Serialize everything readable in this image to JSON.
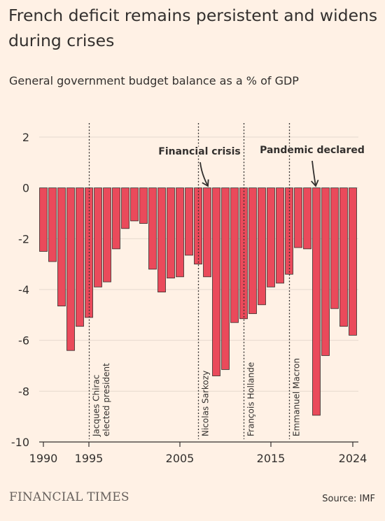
{
  "header": {
    "title": "French deficit remains persistent and widens during crises",
    "subtitle": "General government budget balance as a % of GDP"
  },
  "footer": {
    "brand": "FINANCIAL TIMES",
    "source": "Source: IMF"
  },
  "colors": {
    "background": "#fff1e5",
    "bar": "#ea4a5b",
    "bar_outline": "#33302e",
    "grid": "#e6d9ce",
    "text": "#33302e"
  },
  "chart_data": {
    "type": "bar",
    "x": [
      1990,
      1991,
      1992,
      1993,
      1994,
      1995,
      1996,
      1997,
      1998,
      1999,
      2000,
      2001,
      2002,
      2003,
      2004,
      2005,
      2006,
      2007,
      2008,
      2009,
      2010,
      2011,
      2012,
      2013,
      2014,
      2015,
      2016,
      2017,
      2018,
      2019,
      2020,
      2021,
      2022,
      2023,
      2024
    ],
    "values": [
      -2.5,
      -2.9,
      -4.65,
      -6.4,
      -5.45,
      -5.1,
      -3.9,
      -3.7,
      -2.4,
      -1.6,
      -1.3,
      -1.4,
      -3.2,
      -4.1,
      -3.55,
      -3.5,
      -2.65,
      -3.0,
      -3.5,
      -7.4,
      -7.15,
      -5.3,
      -5.15,
      -4.95,
      -4.6,
      -3.9,
      -3.75,
      -3.4,
      -2.35,
      -2.4,
      -8.95,
      -6.6,
      -4.75,
      -5.45,
      -5.8
    ],
    "ylim": [
      -10,
      2
    ],
    "yticks": [
      2,
      0,
      -2,
      -4,
      -6,
      -8,
      -10
    ],
    "ytick_labels": [
      "2",
      "0",
      "-2",
      "-4",
      "-6",
      "-8",
      "-10"
    ],
    "xticks": [
      1990,
      1995,
      2005,
      2015,
      2024
    ],
    "xtick_labels": [
      "1990",
      "1995",
      "2005",
      "2015",
      "2024"
    ],
    "grid": true,
    "events": [
      {
        "x": 1995,
        "label": "Jacques Chirac elected president",
        "lines": [
          "Jacques Chirac",
          "elected president"
        ]
      },
      {
        "x": 2007,
        "label": "Nicolas Sarkozy",
        "lines": [
          "Nicolas Sarkozy"
        ]
      },
      {
        "x": 2012,
        "label": "François Hollande",
        "lines": [
          "François Hollande"
        ]
      },
      {
        "x": 2017,
        "label": "Emmanuel Macron",
        "lines": [
          "Emmanuel Macron"
        ]
      }
    ],
    "annotations": [
      {
        "label": "Financial crisis",
        "x": 2008,
        "y": 0
      },
      {
        "label": "Pandemic declared",
        "x": 2020,
        "y": 0
      }
    ]
  }
}
